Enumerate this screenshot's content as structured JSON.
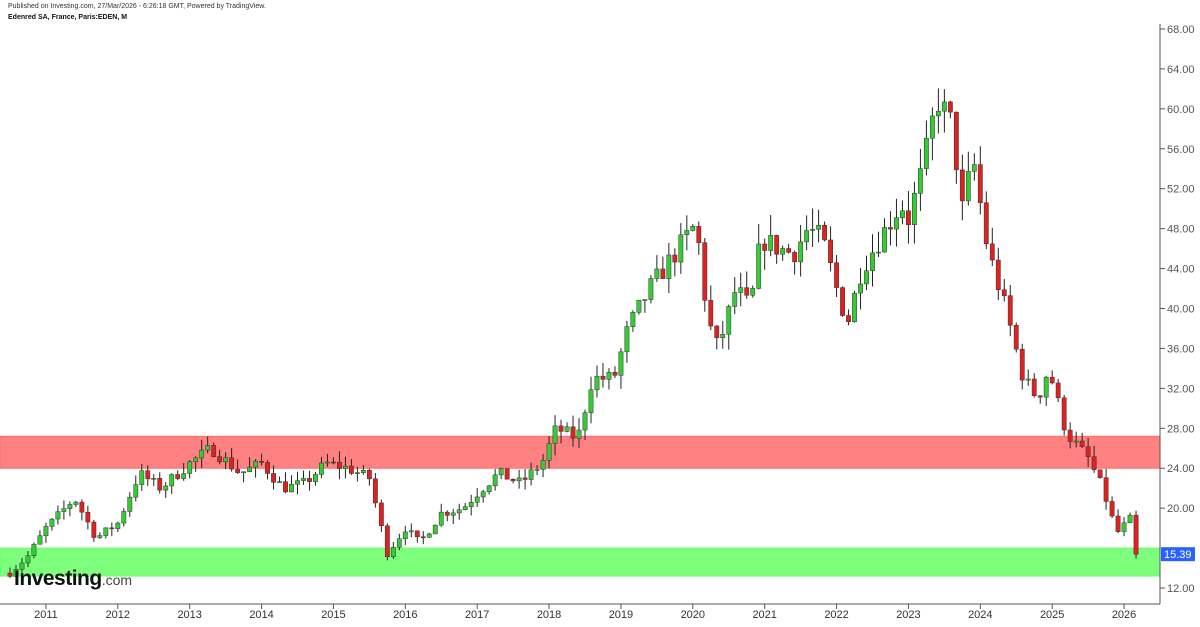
{
  "header": {
    "published": "Published on Investing.com, 27/Mar/2026 - 6:26:18 GMT, Powered by TradingView.",
    "symbol": "Edenred SA, France, Paris:EDEN, M"
  },
  "logo": {
    "main": "Investing",
    "sub": ".com"
  },
  "chart_data": {
    "type": "candlestick",
    "interval": "monthly",
    "x_axis": {
      "range": [
        2010.5,
        2026.5
      ],
      "ticks": [
        "2011",
        "2012",
        "2013",
        "2014",
        "2015",
        "2016",
        "2017",
        "2018",
        "2019",
        "2020",
        "2021",
        "2022",
        "2023",
        "2024",
        "2025",
        "2026"
      ]
    },
    "y_axis": {
      "range": [
        10.4,
        68.5
      ],
      "position": "right",
      "ticks": [
        "12.00",
        "15.39",
        "20.00",
        "24.00",
        "28.00",
        "32.00",
        "36.00",
        "40.00",
        "44.00",
        "48.00",
        "52.00",
        "56.00",
        "60.00",
        "64.00",
        "68.00"
      ]
    },
    "last_price": {
      "value": 15.39,
      "label": "15.39",
      "color": "#2962ff"
    },
    "zones": [
      {
        "name": "resistance-zone",
        "low": 24.0,
        "high": 27.2,
        "color": "#ff6b6b"
      },
      {
        "name": "support-zone",
        "low": 13.2,
        "high": 16.0,
        "color": "#66ff66"
      }
    ],
    "colors": {
      "up": "#33cc33",
      "down": "#dd2222",
      "wick": "#222222"
    },
    "anchors": [
      [
        2010.5,
        13.5
      ],
      [
        2010.75,
        15.2
      ],
      [
        2011.0,
        18.0
      ],
      [
        2011.4,
        21.0
      ],
      [
        2011.7,
        17.0
      ],
      [
        2012.0,
        18.5
      ],
      [
        2012.3,
        23.5
      ],
      [
        2012.6,
        22.0
      ],
      [
        2013.0,
        24.5
      ],
      [
        2013.3,
        26.0
      ],
      [
        2013.7,
        23.5
      ],
      [
        2014.0,
        24.5
      ],
      [
        2014.3,
        22.0
      ],
      [
        2014.6,
        22.5
      ],
      [
        2014.9,
        24.5
      ],
      [
        2015.2,
        24.0
      ],
      [
        2015.5,
        23.0
      ],
      [
        2015.75,
        15.5
      ],
      [
        2016.0,
        18.0
      ],
      [
        2016.2,
        16.5
      ],
      [
        2016.5,
        19.5
      ],
      [
        2016.8,
        20.0
      ],
      [
        2017.0,
        21.5
      ],
      [
        2017.3,
        23.5
      ],
      [
        2017.6,
        22.5
      ],
      [
        2017.9,
        24.5
      ],
      [
        2018.1,
        28.0
      ],
      [
        2018.4,
        27.0
      ],
      [
        2018.6,
        33.0
      ],
      [
        2018.9,
        33.0
      ],
      [
        2019.1,
        38.0
      ],
      [
        2019.4,
        42.0
      ],
      [
        2019.7,
        45.0
      ],
      [
        2020.0,
        48.0
      ],
      [
        2020.1,
        46.0
      ],
      [
        2020.2,
        39.0
      ],
      [
        2020.35,
        36.0
      ],
      [
        2020.6,
        42.0
      ],
      [
        2020.8,
        40.0
      ],
      [
        2020.95,
        47.0
      ],
      [
        2021.2,
        46.0
      ],
      [
        2021.4,
        45.5
      ],
      [
        2021.6,
        48.0
      ],
      [
        2021.8,
        47.0
      ],
      [
        2022.0,
        42.0
      ],
      [
        2022.15,
        38.5
      ],
      [
        2022.35,
        44.0
      ],
      [
        2022.6,
        47.0
      ],
      [
        2022.9,
        50.5
      ],
      [
        2023.0,
        49.0
      ],
      [
        2023.2,
        54.0
      ],
      [
        2023.4,
        61.0
      ],
      [
        2023.6,
        58.5
      ],
      [
        2023.75,
        50.0
      ],
      [
        2023.9,
        55.0
      ],
      [
        2024.1,
        46.0
      ],
      [
        2024.35,
        40.0
      ],
      [
        2024.6,
        33.0
      ],
      [
        2024.8,
        31.0
      ],
      [
        2024.95,
        34.0
      ],
      [
        2025.2,
        27.5
      ],
      [
        2025.5,
        25.0
      ],
      [
        2025.7,
        22.0
      ],
      [
        2025.9,
        17.5
      ],
      [
        2026.1,
        19.0
      ],
      [
        2026.2,
        15.39
      ]
    ]
  }
}
